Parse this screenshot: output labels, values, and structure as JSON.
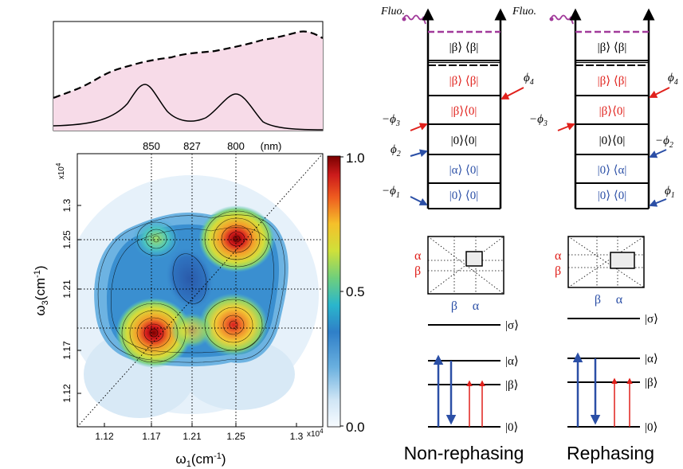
{
  "spectrum": {
    "peak_labels": [
      "850",
      "827",
      "800"
    ],
    "unit": "(nm)"
  },
  "map": {
    "y_exponent": "x10",
    "y_exponent_power": "4",
    "y_label": "ω",
    "y_label_sub": "3",
    "y_label_unit": "(cm",
    "y_label_unit_sup": "-1",
    "y_label_close": ")",
    "y_ticks": [
      "1.3",
      "1.25",
      "1.21",
      "1.17",
      "1.12"
    ],
    "x_ticks": [
      "1.12",
      "1.17",
      "1.21",
      "1.25",
      "1.3"
    ],
    "x_exponent": "x10",
    "x_exponent_power": "4",
    "x_label": "ω",
    "x_label_sub": "1",
    "x_label_unit": "(cm",
    "x_label_unit_sup": "-1",
    "x_label_close": ")"
  },
  "colorbar": {
    "ticks": [
      "1.0",
      "0.5",
      "0.0"
    ],
    "colors": [
      "#7f0000",
      "#e0201b",
      "#f27b1f",
      "#f4d531",
      "#a8d646",
      "#3fc4c4",
      "#3a8fd0",
      "#2a5aaa",
      "#a9cfec",
      "#f2f7fc"
    ]
  },
  "diagrams": {
    "non_rephasing": {
      "fluo_left": "Fluo.",
      "fluo_right": "Fluo.",
      "levels": [
        "|β⟩ ⟨β|",
        "|β⟩ ⟨β|",
        "|β⟩⟨0|",
        "|0⟩⟨0|",
        "|α⟩ ⟨0|",
        "|0⟩ ⟨0|"
      ],
      "phases": [
        "ϕ",
        "−ϕ",
        "ϕ",
        "−ϕ"
      ],
      "phase_subs": [
        "4",
        "3",
        "2",
        "1"
      ],
      "mini_map_labels": [
        "α",
        "β",
        "β",
        "α"
      ],
      "sigma": "|σ⟩",
      "alpha": "|α⟩",
      "beta": "|β⟩",
      "zero": "|0⟩",
      "title": "Non-rephasing"
    },
    "rephasing": {
      "levels": [
        "|β⟩ ⟨β|",
        "|β⟩ ⟨β|",
        "|β⟩⟨0|",
        "|0⟩⟨0|",
        "|0⟩ ⟨α|",
        "|0⟩ ⟨0|"
      ],
      "phases": [
        "ϕ",
        "−ϕ",
        "−ϕ",
        "ϕ"
      ],
      "phase_subs": [
        "4",
        "3",
        "2",
        "1"
      ],
      "mini_map_labels": [
        "α",
        "β",
        "β",
        "α"
      ],
      "sigma": "|σ⟩",
      "alpha": "|α⟩",
      "beta": "|β⟩",
      "zero": "|0⟩",
      "title": "Rephasing"
    }
  },
  "colors": {
    "red": "#e0201b",
    "blue": "#2b4fa6",
    "magenta": "#a13a9a",
    "pink_fill": "#f7dbe8"
  }
}
